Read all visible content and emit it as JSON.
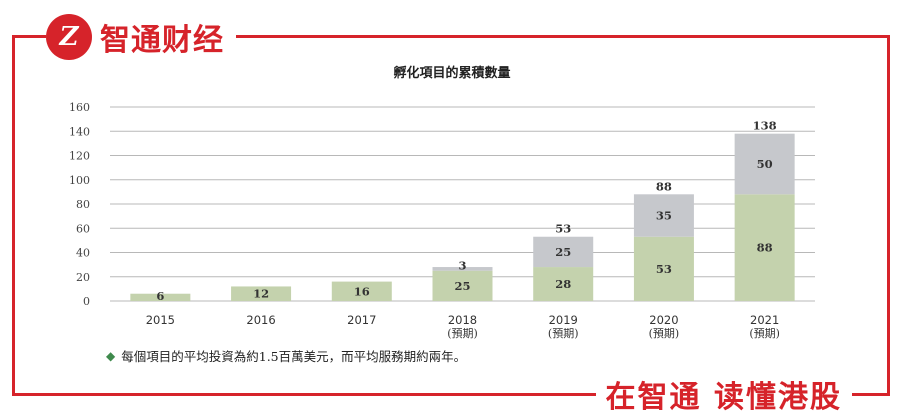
{
  "brand": {
    "logo_mark": "Z",
    "name": "智通财经",
    "slogan": "在智通 读懂港股",
    "accent_color": "#d6232a"
  },
  "chart_data": {
    "type": "bar",
    "stacked": true,
    "title": "孵化項目的累積數量",
    "xlabel": "",
    "ylabel": "",
    "ylim": [
      0,
      160
    ],
    "yticks": [
      0,
      20,
      40,
      60,
      80,
      100,
      120,
      140,
      160
    ],
    "grid": true,
    "categories": [
      "2015",
      "2016",
      "2017",
      "2018",
      "2019",
      "2020",
      "2021"
    ],
    "category_sublabels": [
      "",
      "",
      "",
      "(預期)",
      "(預期)",
      "(預期)",
      "(預期)"
    ],
    "series": [
      {
        "values": [
          6,
          12,
          16,
          25,
          28,
          53,
          88
        ],
        "color": "#c4d2ad"
      },
      {
        "values": [
          0,
          0,
          0,
          3,
          25,
          35,
          50
        ],
        "color": "#c6c8cc"
      }
    ],
    "totals": [
      null,
      null,
      null,
      null,
      53,
      88,
      138
    ]
  },
  "footnote": {
    "bullet": "◆",
    "text": "每個項目的平均投資為約1.5百萬美元，而平均服務期約兩年。"
  }
}
